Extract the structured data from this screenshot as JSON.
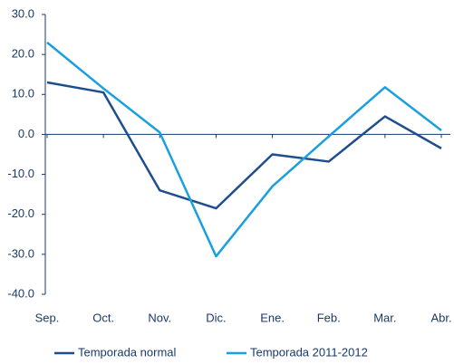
{
  "chart_data": {
    "type": "line",
    "categories": [
      "Sep.",
      "Oct.",
      "Nov.",
      "Dic.",
      "Ene.",
      "Feb.",
      "Mar.",
      "Abr."
    ],
    "series": [
      {
        "name": "Temporada normal",
        "color": "#1f4e8c",
        "values": [
          13,
          10.5,
          -14,
          -18.5,
          -5,
          -6.8,
          4.5,
          -3.5
        ]
      },
      {
        "name": "Temporada 2011-2012",
        "color": "#1aa0e0",
        "values": [
          23,
          11.5,
          0.5,
          -30.5,
          -13,
          -0.5,
          11.8,
          1
        ]
      }
    ],
    "ylim": [
      -40,
      30
    ],
    "yticks": [
      {
        "value": -40,
        "label": "-40.0"
      },
      {
        "value": -30,
        "label": "-30.0"
      },
      {
        "value": -20,
        "label": "-20.0"
      },
      {
        "value": -10,
        "label": "-10.0"
      },
      {
        "value": 0,
        "label": "0.0"
      },
      {
        "value": 10,
        "label": "10.0"
      },
      {
        "value": 20,
        "label": "20.0"
      },
      {
        "value": 30,
        "label": "30.0"
      }
    ],
    "grid": false,
    "legend": "bottom"
  }
}
